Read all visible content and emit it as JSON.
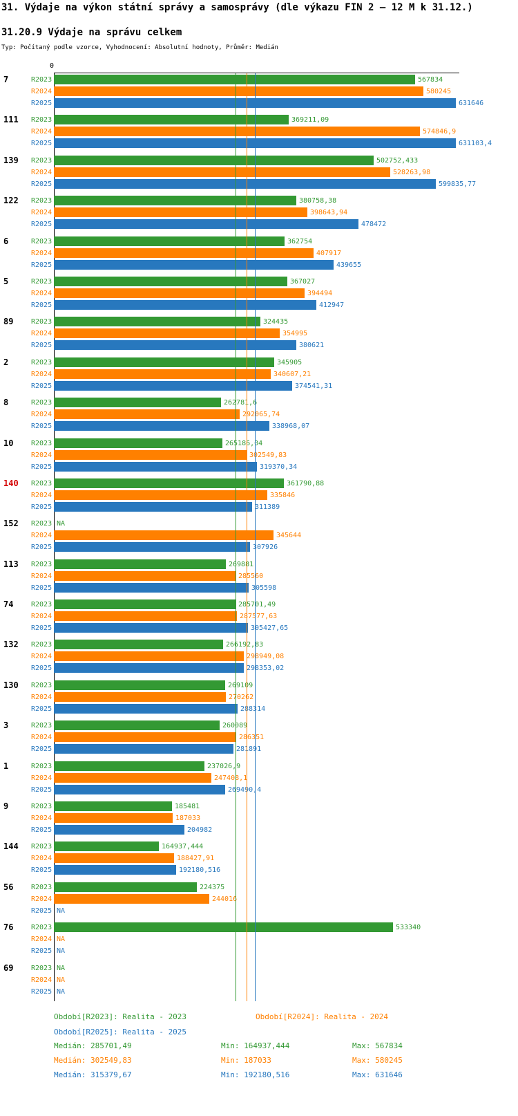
{
  "title": "31. Výdaje na výkon státní správy a samosprávy (dle výkazu FIN 2 – 12 M k 31.12.)",
  "subtitle": "31.20.9 Výdaje na správu celkem",
  "type_line": "Typ: Počítaný podle vzorce, Vyhodnocení: Absolutní hodnoty, Průměr: Medián",
  "axis": {
    "zero_label": "0"
  },
  "colors": {
    "r2023": "#339933",
    "r2024": "#FF8000",
    "r2025": "#2878BE",
    "highlight": "#D40000"
  },
  "chart_data": {
    "type": "bar",
    "orientation": "horizontal",
    "x_axis": {
      "zero_label": "0",
      "max_value": 631646
    },
    "series": [
      "R2023",
      "R2024",
      "R2025"
    ],
    "medians": {
      "R2023": 285701.49,
      "R2024": 302549.83,
      "R2025": 315379.67
    },
    "groups": [
      {
        "id": "7",
        "highlight": false,
        "values": [
          "567834",
          "580245",
          "631646"
        ]
      },
      {
        "id": "111",
        "highlight": false,
        "values": [
          "369211,09",
          "574846,9",
          "631103,4"
        ]
      },
      {
        "id": "139",
        "highlight": false,
        "values": [
          "502752,433",
          "528263,98",
          "599835,77"
        ]
      },
      {
        "id": "122",
        "highlight": false,
        "values": [
          "380758,38",
          "398643,94",
          "478472"
        ]
      },
      {
        "id": "6",
        "highlight": false,
        "values": [
          "362754",
          "407917",
          "439655"
        ]
      },
      {
        "id": "5",
        "highlight": false,
        "values": [
          "367027",
          "394494",
          "412947"
        ]
      },
      {
        "id": "89",
        "highlight": false,
        "values": [
          "324435",
          "354995",
          "380621"
        ]
      },
      {
        "id": "2",
        "highlight": false,
        "values": [
          "345905",
          "340607,21",
          "374541,31"
        ]
      },
      {
        "id": "8",
        "highlight": false,
        "values": [
          "262781,6",
          "292065,74",
          "338968,07"
        ]
      },
      {
        "id": "10",
        "highlight": false,
        "values": [
          "265186,04",
          "302549,83",
          "319370,34"
        ]
      },
      {
        "id": "140",
        "highlight": true,
        "values": [
          "361790,88",
          "335846",
          "311389"
        ]
      },
      {
        "id": "152",
        "highlight": false,
        "values": [
          "NA",
          "345644",
          "307926"
        ]
      },
      {
        "id": "113",
        "highlight": false,
        "values": [
          "269881",
          "285560",
          "305598"
        ]
      },
      {
        "id": "74",
        "highlight": false,
        "values": [
          "285701,49",
          "287577,63",
          "305427,65"
        ]
      },
      {
        "id": "132",
        "highlight": false,
        "values": [
          "266192,83",
          "298949,08",
          "298353,02"
        ]
      },
      {
        "id": "130",
        "highlight": false,
        "values": [
          "269109",
          "270262",
          "288314"
        ]
      },
      {
        "id": "3",
        "highlight": false,
        "values": [
          "260089",
          "286351",
          "281891"
        ]
      },
      {
        "id": "1",
        "highlight": false,
        "values": [
          "237026,9",
          "247408,1",
          "269490,4"
        ]
      },
      {
        "id": "9",
        "highlight": false,
        "values": [
          "185481",
          "187033",
          "204982"
        ]
      },
      {
        "id": "144",
        "highlight": false,
        "values": [
          "164937,444",
          "188427,91",
          "192180,516"
        ]
      },
      {
        "id": "56",
        "highlight": false,
        "values": [
          "224375",
          "244016",
          "NA"
        ]
      },
      {
        "id": "76",
        "highlight": false,
        "values": [
          "533340",
          "NA",
          "NA"
        ]
      },
      {
        "id": "69",
        "highlight": false,
        "values": [
          "NA",
          "NA",
          "NA"
        ]
      }
    ]
  },
  "legend": {
    "r2023": "Období[R2023]: Realita - 2023",
    "r2024": "Období[R2024]: Realita - 2024",
    "r2025": "Období[R2025]: Realita - 2025"
  },
  "stats": [
    {
      "median": "Medián: 285701,49",
      "min": "Min: 164937,444",
      "max": "Max: 567834"
    },
    {
      "median": "Medián: 302549,83",
      "min": "Min: 187033",
      "max": "Max: 580245"
    },
    {
      "median": "Medián: 315379,67",
      "min": "Min: 192180,516",
      "max": "Max: 631646"
    }
  ]
}
